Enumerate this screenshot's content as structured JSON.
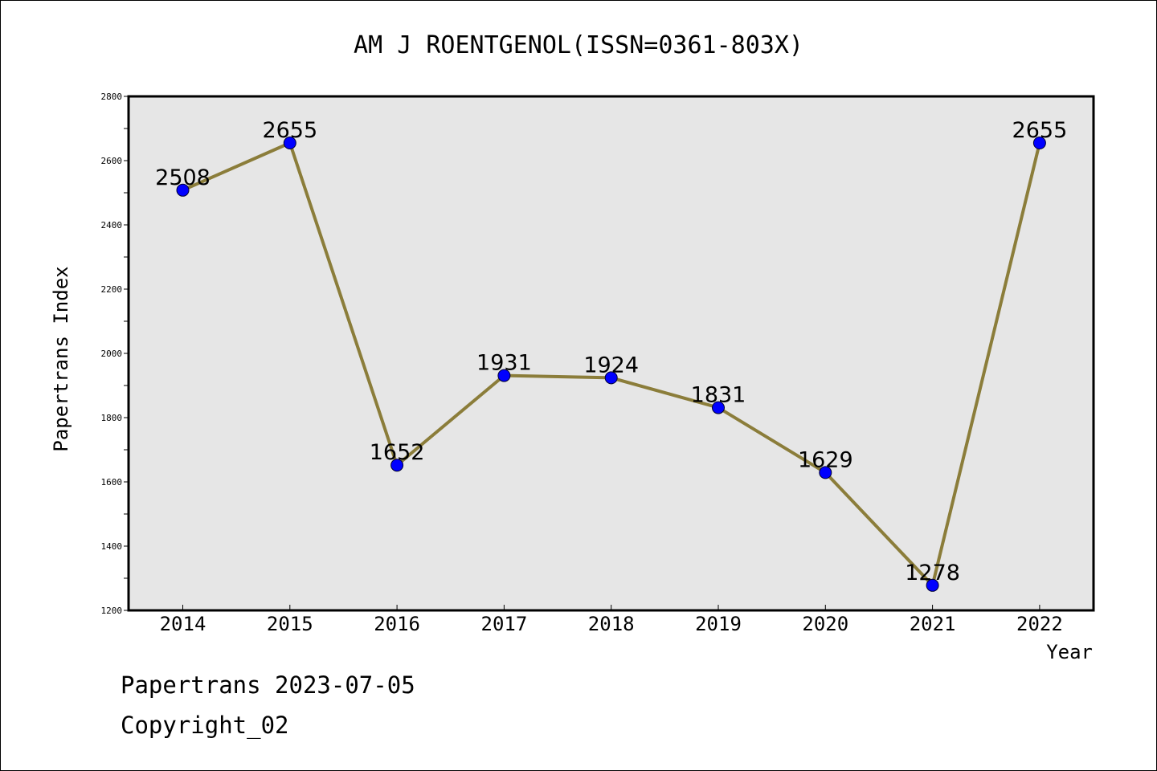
{
  "chart_data": {
    "type": "line",
    "title": "AM J ROENTGENOL(ISSN=0361-803X)",
    "xlabel": "Year",
    "ylabel": "Papertrans Index",
    "categories": [
      "2014",
      "2015",
      "2016",
      "2017",
      "2018",
      "2019",
      "2020",
      "2021",
      "2022"
    ],
    "series": [
      {
        "values": [
          2508,
          2655,
          1652,
          1931,
          1924,
          1831,
          1629,
          1278,
          2655
        ]
      }
    ],
    "ylim": [
      1200,
      2800
    ],
    "yticks": [
      "1200",
      "1400",
      "1600",
      "1800",
      "2000",
      "2200",
      "2400",
      "2600",
      "2800"
    ],
    "grid": false,
    "line_color": "#8B7D3A",
    "marker_color": "#0000FF",
    "plot_background": "#E6E6E6"
  },
  "footer": {
    "line1": "Papertrans 2023-07-05",
    "line2": "Copyright_02"
  }
}
